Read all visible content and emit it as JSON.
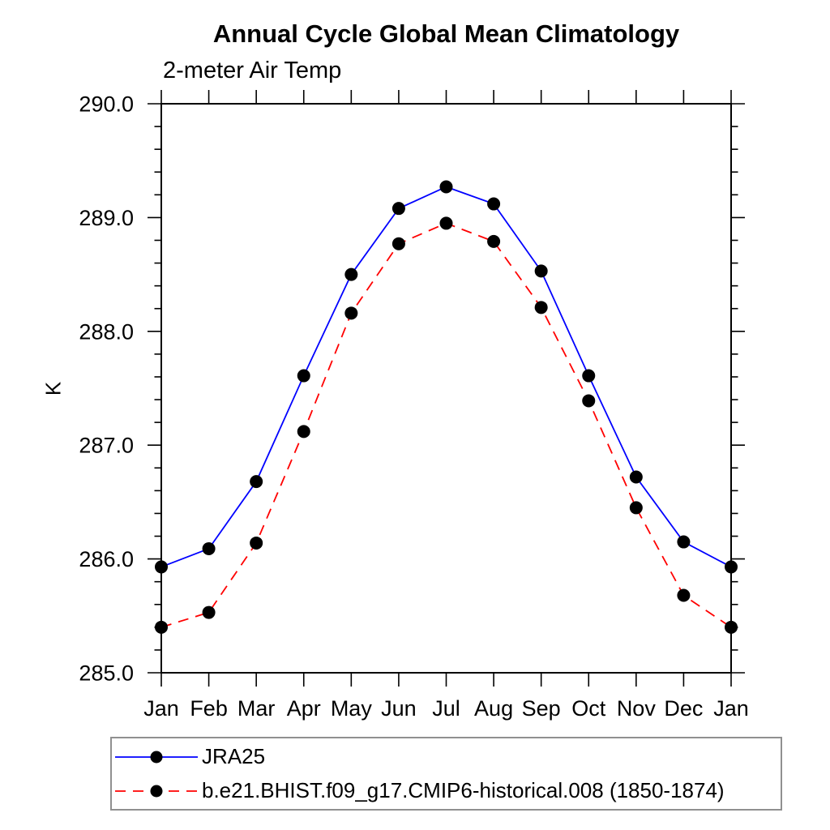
{
  "title": "Annual Cycle Global Mean Climatology",
  "subtitle": "2-meter Air Temp",
  "chart_data": {
    "type": "line",
    "x_categories": [
      "Jan",
      "Feb",
      "Mar",
      "Apr",
      "May",
      "Jun",
      "Jul",
      "Aug",
      "Sep",
      "Oct",
      "Nov",
      "Dec",
      "Jan"
    ],
    "xlabel": "",
    "ylabel": "K",
    "ylim": [
      285.0,
      290.0
    ],
    "y_major_tick_interval": 1.0,
    "y_minor_tick_interval": 0.2,
    "y_tick_labels": [
      "285.0",
      "286.0",
      "287.0",
      "288.0",
      "289.0",
      "290.0"
    ],
    "grid": false,
    "legend_position": "bottom-left-box",
    "series": [
      {
        "name": "JRA25",
        "color": "#0000ff",
        "line_style": "solid",
        "marker": "filled-circle",
        "marker_color": "#000000",
        "values": [
          285.93,
          286.09,
          286.68,
          287.61,
          288.5,
          289.08,
          289.27,
          289.12,
          288.53,
          287.61,
          286.72,
          286.15,
          285.93
        ]
      },
      {
        "name": "b.e21.BHIST.f09_g17.CMIP6-historical.008 (1850-1874)",
        "color": "#ff0000",
        "line_style": "dashed",
        "marker": "filled-circle",
        "marker_color": "#000000",
        "values": [
          285.4,
          285.53,
          286.14,
          287.12,
          288.16,
          288.77,
          288.95,
          288.79,
          288.21,
          287.39,
          286.45,
          285.68,
          285.4
        ]
      }
    ]
  },
  "colors": {
    "background": "#ffffff",
    "axis": "#000000",
    "text": "#000000",
    "legend_border": "#909090"
  }
}
